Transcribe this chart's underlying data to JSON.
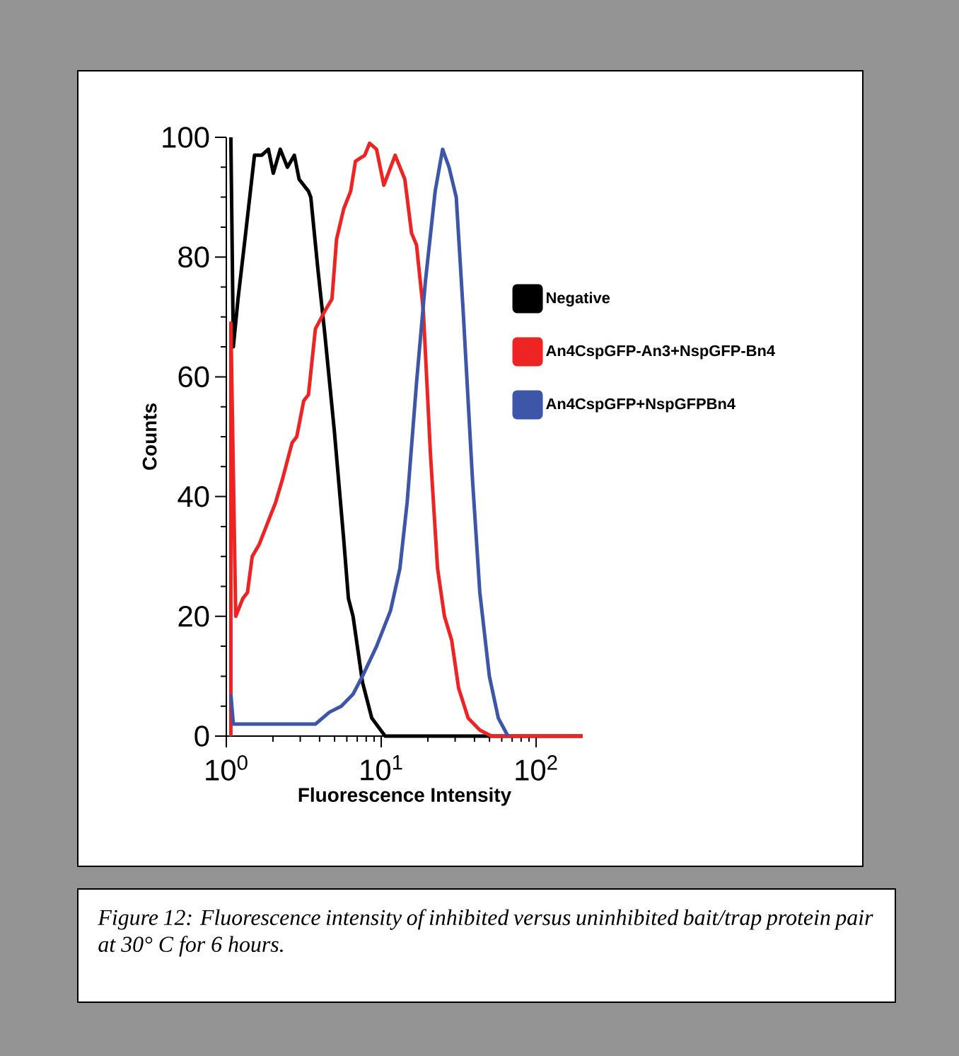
{
  "chart_data": {
    "type": "line",
    "xlabel": "Fluorescence Intensity",
    "ylabel": "Counts",
    "log": "x",
    "xlim": [
      1,
      200
    ],
    "ylim": [
      0,
      100
    ],
    "xticks": [
      {
        "value": 1,
        "label": "10$^{0}$"
      },
      {
        "value": 10,
        "label": "10$^{1}$"
      },
      {
        "value": 100,
        "label": "10$^{2}$"
      }
    ],
    "yticks": [
      0,
      20,
      40,
      60,
      80,
      100
    ],
    "legend": "right",
    "annotations": [
      "Figure 12: Fluorescence intensity of inhibited versus uninhibited bait/trap protein pair at 30° C for 6 hours."
    ],
    "series": [
      {
        "name": "Negative",
        "color": "#000000",
        "x": [
          1.07,
          1.11,
          1.19,
          1.32,
          1.52,
          1.69,
          1.87,
          2.01,
          2.23,
          2.48,
          2.75,
          2.95,
          3.39,
          3.51,
          3.9,
          4.33,
          4.98,
          5.72,
          6.14,
          6.58,
          7.57,
          8.69,
          10.6,
          200
        ],
        "values": [
          100,
          65,
          73,
          83,
          97,
          97,
          98,
          94,
          98,
          95,
          97,
          93,
          91,
          90,
          78,
          67,
          51,
          33,
          23,
          20,
          9,
          3,
          0,
          0
        ]
      },
      {
        "name": "An4CspGFP-An3+NspGFP-Bn4",
        "color": "#ee2424",
        "x": [
          1.07,
          1.07,
          1.15,
          1.28,
          1.37,
          1.47,
          1.63,
          1.81,
          1.94,
          2.08,
          2.31,
          2.66,
          2.85,
          3.16,
          3.39,
          3.76,
          4.33,
          4.81,
          5.15,
          5.72,
          6.35,
          6.82,
          7.83,
          8.41,
          9.33,
          10.4,
          12.3,
          14.2,
          15.7,
          16.9,
          18.7,
          20.8,
          23.1,
          25.6,
          28.5,
          31.6,
          36.4,
          43.3,
          51.5,
          200
        ],
        "values": [
          0,
          69,
          20,
          23,
          24,
          30,
          32,
          35,
          37,
          39,
          43,
          49,
          50,
          56,
          57,
          68,
          71,
          73,
          83,
          88,
          91,
          96,
          97,
          99,
          98,
          92,
          97,
          93,
          84,
          82,
          71,
          47,
          28,
          20,
          16,
          8,
          3,
          1,
          0,
          0
        ]
      },
      {
        "name": "An4CspGFP+NspGFPBn4",
        "color": "#3d56a8",
        "x": [
          1.07,
          1.11,
          1.37,
          1.87,
          2.85,
          3.76,
          4.64,
          5.53,
          6.58,
          7.57,
          9.33,
          11.5,
          13.2,
          14.7,
          16.9,
          19.3,
          22.3,
          24.9,
          27.4,
          30.5,
          33.8,
          38.8,
          43.3,
          49.9,
          57.0,
          65.8
        ],
        "values": [
          7,
          2,
          2,
          2,
          2,
          2,
          4,
          5,
          7,
          10,
          15,
          21,
          28,
          39,
          59,
          76,
          91,
          98,
          95,
          90,
          71,
          43,
          24,
          10,
          3,
          0
        ]
      }
    ]
  }
}
